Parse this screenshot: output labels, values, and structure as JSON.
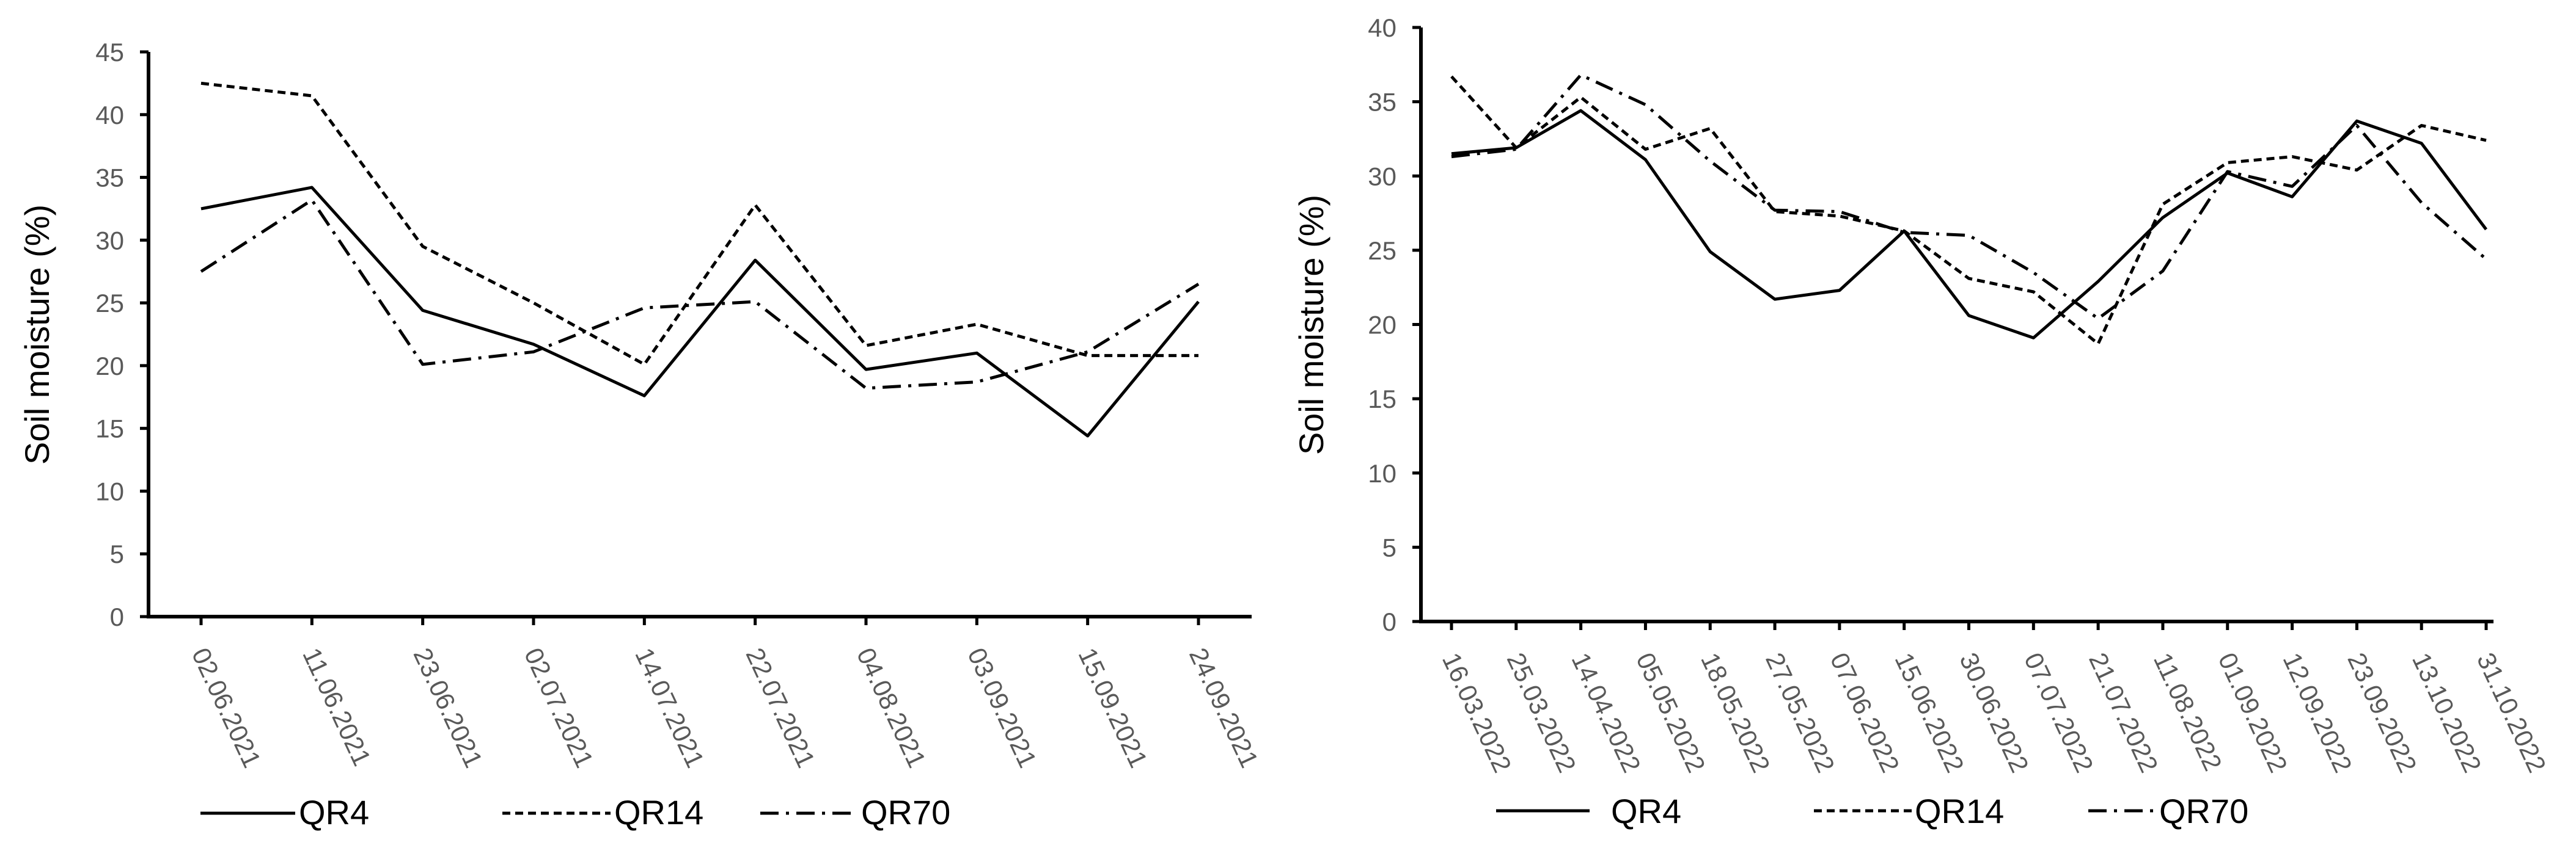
{
  "chart_data": [
    {
      "type": "line",
      "title": "",
      "xlabel": "",
      "ylabel": "Soil moisture (%)",
      "ylim": [
        0,
        45
      ],
      "yticks": [
        0,
        5,
        10,
        15,
        20,
        25,
        30,
        35,
        40,
        45
      ],
      "grid": false,
      "legend": "bottom",
      "categories": [
        "02.06.2021",
        "11.06.2021",
        "23.06.2021",
        "02.07.2021",
        "14.07.2021",
        "22.07.2021",
        "04.08.2021",
        "03.09.2021",
        "15.09.2021",
        "24.09.2021"
      ],
      "series": [
        {
          "name": "QR4",
          "style": "solid",
          "values": [
            32.5,
            34.2,
            24.4,
            21.7,
            17.6,
            28.4,
            19.7,
            21.0,
            14.4,
            25.1
          ]
        },
        {
          "name": "QR14",
          "style": "dashed",
          "values": [
            42.5,
            41.5,
            29.5,
            25.0,
            20.1,
            32.8,
            21.6,
            23.3,
            20.8,
            20.8
          ]
        },
        {
          "name": "QR70",
          "style": "dashdot",
          "values": [
            27.5,
            33.2,
            20.1,
            21.1,
            24.6,
            25.1,
            18.2,
            18.7,
            21.1,
            26.5
          ]
        }
      ]
    },
    {
      "type": "line",
      "title": "",
      "xlabel": "",
      "ylabel": "Soil moisture (%)",
      "ylim": [
        0,
        40
      ],
      "yticks": [
        0,
        5,
        10,
        15,
        20,
        25,
        30,
        35,
        40
      ],
      "grid": false,
      "legend": "bottom",
      "categories": [
        "16.03.2022",
        "25.03.2022",
        "14.04.2022",
        "05.05.2022",
        "18.05.2022",
        "27.05.2022",
        "07.06.2022",
        "15.06.2022",
        "30.06.2022",
        "07.07.2022",
        "21.07.2022",
        "11.08.2022",
        "01.09.2022",
        "12.09.2022",
        "23.09.2022",
        "13.10.2022",
        "31.10.2022"
      ],
      "series": [
        {
          "name": "QR4",
          "style": "solid",
          "values": [
            31.5,
            31.9,
            34.4,
            31.1,
            24.9,
            21.7,
            22.3,
            26.3,
            20.6,
            19.1,
            22.9,
            27.2,
            30.2,
            28.6,
            33.7,
            32.2,
            26.4
          ]
        },
        {
          "name": "QR14",
          "style": "dashed",
          "values": [
            36.7,
            31.9,
            35.3,
            31.8,
            33.2,
            27.6,
            27.3,
            26.3,
            23.1,
            22.2,
            18.7,
            28.1,
            30.9,
            31.3,
            30.4,
            33.4,
            32.4
          ]
        },
        {
          "name": "QR70",
          "style": "dashdot",
          "values": [
            31.3,
            31.8,
            36.8,
            34.8,
            31.0,
            27.7,
            27.6,
            26.2,
            26.0,
            23.5,
            20.4,
            23.6,
            30.3,
            29.3,
            33.4,
            28.2,
            24.4
          ]
        }
      ]
    }
  ]
}
